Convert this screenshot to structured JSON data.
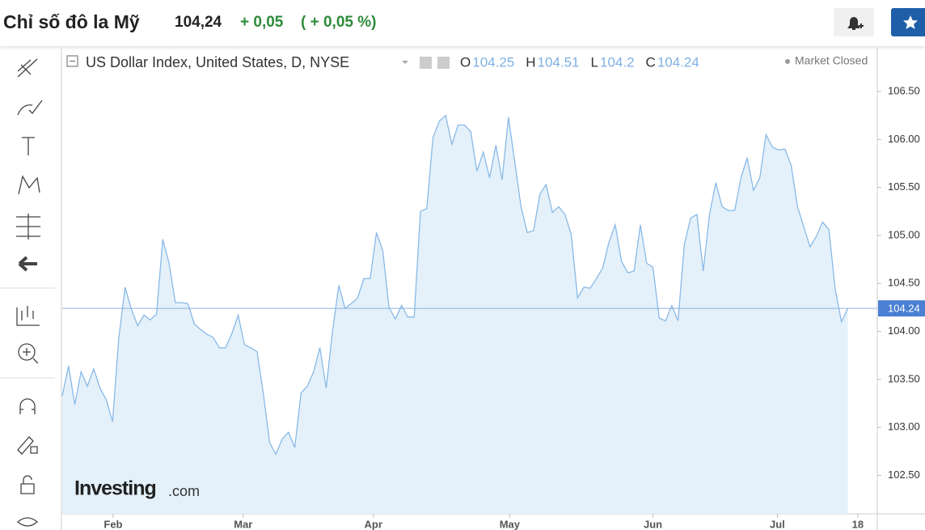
{
  "header": {
    "title": "Chỉ số đô la Mỹ",
    "price": "104,24",
    "change": "+ 0,05",
    "change_percent": "( + 0,05 %)"
  },
  "chart_data": {
    "type": "area",
    "title": "US Dollar Index, United States, D, NYSE",
    "ohlc": [
      {
        "name": "O",
        "value": 104.25
      },
      {
        "name": "H",
        "value": 104.51
      },
      {
        "name": "L",
        "value": 104.2
      },
      {
        "name": "C",
        "value": 104.24
      }
    ],
    "status": "Market Closed",
    "watermark": [
      "Investing",
      ".com"
    ],
    "color": "#8ab9e6",
    "fill": "#e4f1fa",
    "values": [
      103.33,
      103.64,
      103.24,
      103.58,
      103.43,
      103.61,
      103.41,
      103.29,
      103.06,
      103.93,
      104.46,
      104.23,
      104.06,
      104.17,
      104.12,
      104.18,
      104.96,
      104.71,
      104.3,
      104.3,
      104.29,
      104.08,
      104.02,
      103.97,
      103.94,
      103.83,
      103.83,
      103.98,
      104.17,
      103.86,
      103.83,
      103.79,
      103.35,
      102.84,
      102.72,
      102.88,
      102.95,
      102.79,
      103.36,
      103.43,
      103.58,
      103.83,
      103.41,
      104.0,
      104.48,
      104.24,
      104.29,
      104.35,
      104.55,
      104.55,
      105.03,
      104.84,
      104.25,
      104.13,
      104.27,
      104.15,
      104.15,
      105.25,
      105.28,
      106.02,
      106.19,
      106.25,
      105.95,
      106.15,
      106.15,
      106.08,
      105.67,
      105.87,
      105.6,
      105.94,
      105.58,
      106.23,
      105.77,
      105.3,
      105.03,
      105.05,
      105.43,
      105.53,
      105.24,
      105.3,
      105.22,
      105.01,
      104.35,
      104.46,
      104.45,
      104.55,
      104.66,
      104.93,
      105.11,
      104.73,
      104.61,
      104.63,
      105.11,
      104.71,
      104.67,
      104.14,
      104.11,
      104.27,
      104.11,
      104.91,
      105.18,
      105.22,
      104.63,
      105.22,
      105.55,
      105.3,
      105.26,
      105.26,
      105.6,
      105.81,
      105.47,
      105.6,
      106.05,
      105.92,
      105.89,
      105.9,
      105.73,
      105.3,
      105.09,
      104.88,
      104.99,
      105.14,
      105.06,
      104.44,
      104.1,
      104.24
    ],
    "price_line": 104.24,
    "xlim": [
      0,
      129.7
    ],
    "xticks": [
      {
        "value": 8.1,
        "label": "Feb"
      },
      {
        "value": 28.8,
        "label": "Mar"
      },
      {
        "value": 49.5,
        "label": "Apr"
      },
      {
        "value": 71.2,
        "label": "May"
      },
      {
        "value": 94,
        "label": "Jun"
      },
      {
        "value": 113.8,
        "label": "Jul"
      },
      {
        "value": 126.6,
        "label": "18"
      }
    ],
    "ylim": [
      102.1,
      106.93
    ],
    "yticks": [
      {
        "value": 102.5,
        "label": "102.50"
      },
      {
        "value": 103,
        "label": "103.00"
      },
      {
        "value": 103.5,
        "label": "103.50"
      },
      {
        "value": 104,
        "label": "104.00"
      },
      {
        "value": 104.5,
        "label": "104.50"
      },
      {
        "value": 105,
        "label": "105.00"
      },
      {
        "value": 105.5,
        "label": "105.50"
      },
      {
        "value": 106,
        "label": "106.00"
      },
      {
        "value": 106.5,
        "label": "106.50"
      }
    ],
    "grid": false
  }
}
